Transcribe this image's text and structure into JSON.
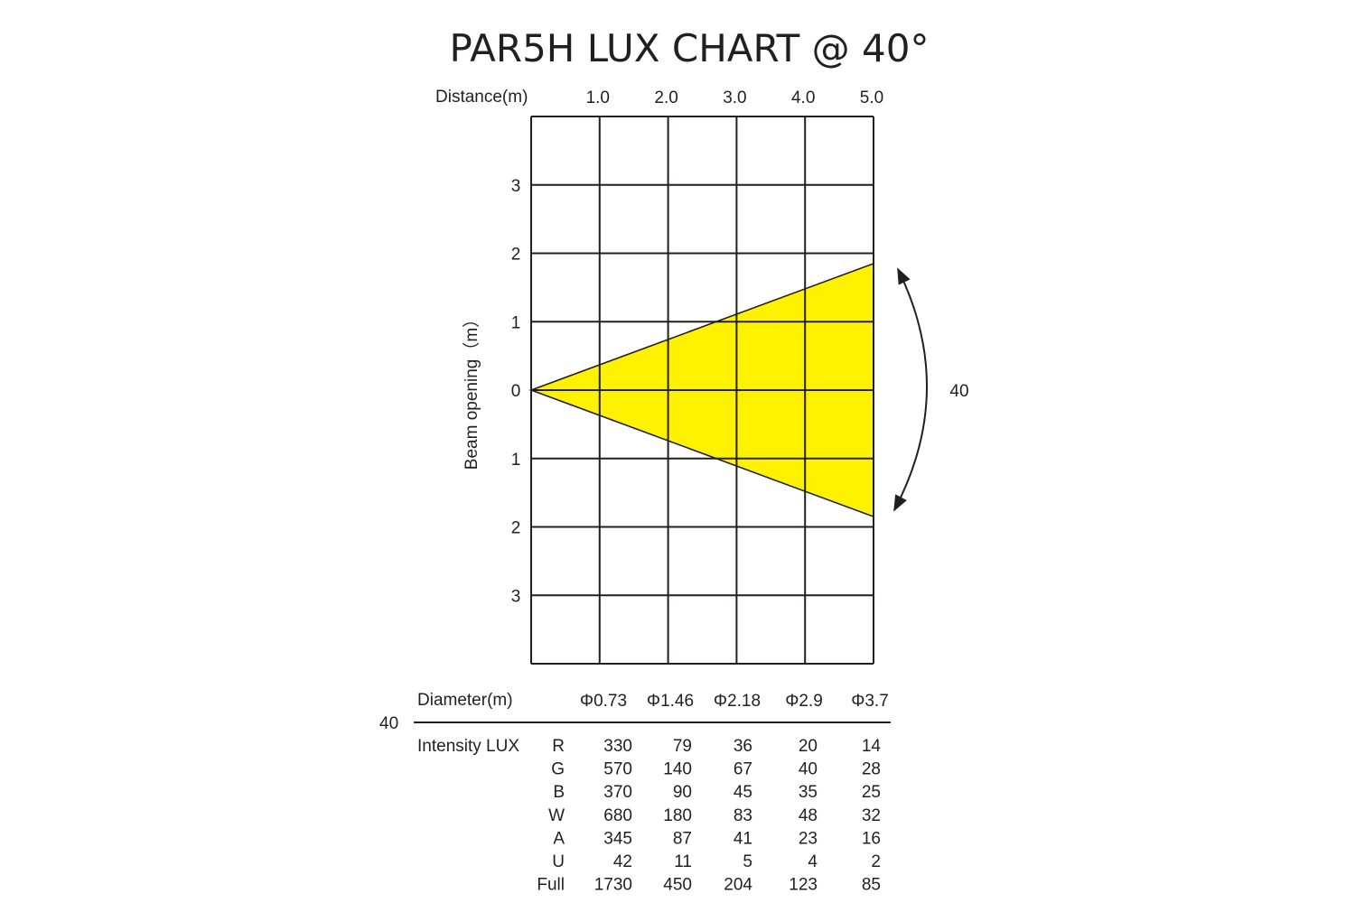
{
  "chart_data": {
    "type": "table",
    "title": "PAR5H LUX CHART @ 40°",
    "beam_angle": "40",
    "xlabel": "Distance(m)",
    "ylabel": "Beam opening（m）",
    "x_ticks": [
      "1.0",
      "2.0",
      "3.0",
      "4.0",
      "5.0"
    ],
    "y_ticks": [
      "3",
      "2",
      "1",
      "0",
      "1",
      "2",
      "3"
    ],
    "xlim": [
      0,
      5
    ],
    "ylim": [
      -4,
      4
    ],
    "beam_fill_color": "#FFF200",
    "grid": true,
    "diameter_label": "Diameter(m)",
    "diameters": [
      "Φ0.73",
      "Φ1.46",
      "Φ2.18",
      "Φ2.9",
      "Φ3.7"
    ],
    "angle_row_label": "40",
    "intensity_label": "Intensity LUX",
    "rows": [
      {
        "channel": "R",
        "values": [
          330,
          79,
          36,
          20,
          14
        ]
      },
      {
        "channel": "G",
        "values": [
          570,
          140,
          67,
          40,
          28
        ]
      },
      {
        "channel": "B",
        "values": [
          370,
          90,
          45,
          35,
          25
        ]
      },
      {
        "channel": "W",
        "values": [
          680,
          180,
          83,
          48,
          32
        ]
      },
      {
        "channel": "A",
        "values": [
          345,
          87,
          41,
          23,
          16
        ]
      },
      {
        "channel": "U",
        "values": [
          42,
          11,
          5,
          4,
          2
        ]
      },
      {
        "channel": "Full",
        "values": [
          1730,
          450,
          204,
          123,
          85
        ]
      }
    ]
  }
}
